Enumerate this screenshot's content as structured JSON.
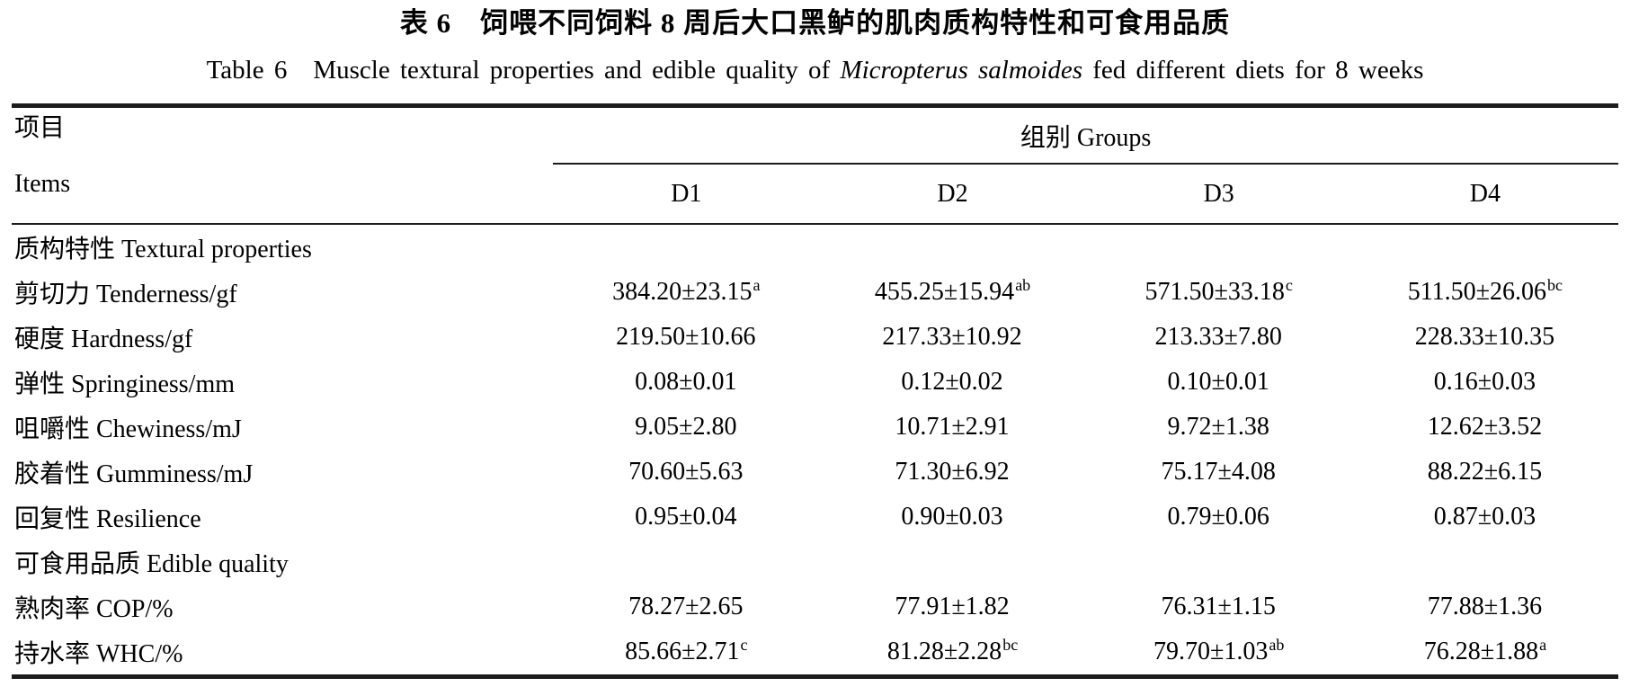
{
  "page": {
    "background_color": "#ffffff",
    "text_color": "#000000",
    "rule_color": "#1c1c1c"
  },
  "title": {
    "zh": "表 6　饲喂不同饲料 8 周后大口黑鲈的肌肉质构特性和可食用品质",
    "en_prefix": "Table 6 Muscle textural properties and edible quality of ",
    "en_species": "Micropterus salmoides",
    "en_suffix": " fed different diets for 8 weeks"
  },
  "header": {
    "items_label_zh": "项目",
    "items_label_en": "Items",
    "groups_label": "组别 Groups",
    "group_columns": [
      "D1",
      "D2",
      "D3",
      "D4"
    ]
  },
  "body": {
    "rows": [
      {
        "type": "section",
        "label": "质构特性 Textural properties"
      },
      {
        "type": "data",
        "label": "剪切力 Tenderness/gf",
        "values": [
          {
            "text": "384.20±23.15",
            "sup": "a"
          },
          {
            "text": "455.25±15.94",
            "sup": "ab"
          },
          {
            "text": "571.50±33.18",
            "sup": "c"
          },
          {
            "text": "511.50±26.06",
            "sup": "bc"
          }
        ]
      },
      {
        "type": "data",
        "label": "硬度 Hardness/gf",
        "values": [
          {
            "text": "219.50±10.66",
            "sup": ""
          },
          {
            "text": "217.33±10.92",
            "sup": ""
          },
          {
            "text": "213.33±7.80",
            "sup": ""
          },
          {
            "text": "228.33±10.35",
            "sup": ""
          }
        ]
      },
      {
        "type": "data",
        "label": "弹性 Springiness/mm",
        "values": [
          {
            "text": "0.08±0.01",
            "sup": ""
          },
          {
            "text": "0.12±0.02",
            "sup": ""
          },
          {
            "text": "0.10±0.01",
            "sup": ""
          },
          {
            "text": "0.16±0.03",
            "sup": ""
          }
        ]
      },
      {
        "type": "data",
        "label": "咀嚼性 Chewiness/mJ",
        "values": [
          {
            "text": "9.05±2.80",
            "sup": ""
          },
          {
            "text": "10.71±2.91",
            "sup": ""
          },
          {
            "text": "9.72±1.38",
            "sup": ""
          },
          {
            "text": "12.62±3.52",
            "sup": ""
          }
        ]
      },
      {
        "type": "data",
        "label": "胶着性 Gumminess/mJ",
        "values": [
          {
            "text": "70.60±5.63",
            "sup": ""
          },
          {
            "text": "71.30±6.92",
            "sup": ""
          },
          {
            "text": "75.17±4.08",
            "sup": ""
          },
          {
            "text": "88.22±6.15",
            "sup": ""
          }
        ]
      },
      {
        "type": "data",
        "label": "回复性 Resilience",
        "values": [
          {
            "text": "0.95±0.04",
            "sup": ""
          },
          {
            "text": "0.90±0.03",
            "sup": ""
          },
          {
            "text": "0.79±0.06",
            "sup": ""
          },
          {
            "text": "0.87±0.03",
            "sup": ""
          }
        ]
      },
      {
        "type": "section",
        "label": "可食用品质 Edible quality"
      },
      {
        "type": "data",
        "label": "熟肉率 COP/%",
        "values": [
          {
            "text": "78.27±2.65",
            "sup": ""
          },
          {
            "text": "77.91±1.82",
            "sup": ""
          },
          {
            "text": "76.31±1.15",
            "sup": ""
          },
          {
            "text": "77.88±1.36",
            "sup": ""
          }
        ]
      },
      {
        "type": "data",
        "label": "持水率 WHC/%",
        "values": [
          {
            "text": "85.66±2.71",
            "sup": "c"
          },
          {
            "text": "81.28±2.28",
            "sup": "bc"
          },
          {
            "text": "79.70±1.03",
            "sup": "ab"
          },
          {
            "text": "76.28±1.88",
            "sup": "a"
          }
        ]
      }
    ]
  }
}
